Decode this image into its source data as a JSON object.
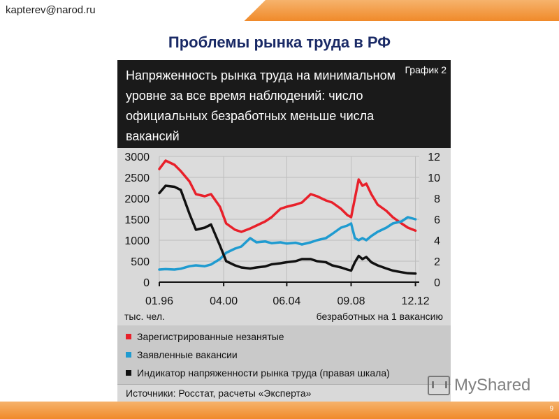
{
  "header": {
    "email": "kapterev@narod.ru",
    "title": "Проблемы рынка труда в РФ"
  },
  "chart_card": {
    "headline": "Напряженность рынка труда на минимальном уровне за все время наблюдений: число официальных безработных меньше числа вакансий",
    "badge": "График 2",
    "source": "Источники: Росстат, расчеты «Эксперта»"
  },
  "footer": {
    "page_number": "9",
    "watermark": "MyShared"
  },
  "chart_data": {
    "type": "line",
    "x_tick_labels": [
      "01.96",
      "04.00",
      "06.04",
      "09.08",
      "12.12"
    ],
    "x_range": [
      "1996-01",
      "2013-03"
    ],
    "left_axis": {
      "label": "тыс. чел.",
      "ticks": [
        0,
        500,
        1000,
        1500,
        2000,
        2500,
        3000
      ],
      "range": [
        0,
        3000
      ]
    },
    "right_axis": {
      "label": "безработных на 1 вакансию",
      "ticks": [
        0,
        2,
        4,
        6,
        8,
        10,
        12
      ],
      "range": [
        0,
        12
      ]
    },
    "grid": true,
    "colors": {
      "red": "#e8202a",
      "blue": "#1f9bd0",
      "black": "#111111"
    },
    "series": [
      {
        "name": "Зарегистрированные незанятые",
        "axis": "left",
        "color": "#e8202a",
        "points": [
          [
            "1996-01",
            2700
          ],
          [
            "1996-06",
            2900
          ],
          [
            "1997-01",
            2800
          ],
          [
            "1997-06",
            2650
          ],
          [
            "1998-01",
            2400
          ],
          [
            "1998-06",
            2100
          ],
          [
            "1999-01",
            2050
          ],
          [
            "1999-06",
            2100
          ],
          [
            "2000-01",
            1800
          ],
          [
            "2000-06",
            1400
          ],
          [
            "2001-01",
            1250
          ],
          [
            "2001-06",
            1200
          ],
          [
            "2002-01",
            1280
          ],
          [
            "2002-06",
            1350
          ],
          [
            "2003-01",
            1450
          ],
          [
            "2003-06",
            1550
          ],
          [
            "2004-01",
            1750
          ],
          [
            "2004-06",
            1800
          ],
          [
            "2005-01",
            1850
          ],
          [
            "2005-06",
            1900
          ],
          [
            "2006-01",
            2100
          ],
          [
            "2006-06",
            2050
          ],
          [
            "2007-01",
            1950
          ],
          [
            "2007-06",
            1900
          ],
          [
            "2008-01",
            1750
          ],
          [
            "2008-06",
            1600
          ],
          [
            "2008-09",
            1550
          ],
          [
            "2008-12",
            2000
          ],
          [
            "2009-03",
            2450
          ],
          [
            "2009-06",
            2300
          ],
          [
            "2009-09",
            2350
          ],
          [
            "2010-01",
            2100
          ],
          [
            "2010-06",
            1850
          ],
          [
            "2011-01",
            1700
          ],
          [
            "2011-06",
            1550
          ],
          [
            "2012-01",
            1400
          ],
          [
            "2012-06",
            1300
          ],
          [
            "2012-12",
            1230
          ]
        ]
      },
      {
        "name": "Заявленные вакансии",
        "axis": "left",
        "color": "#1f9bd0",
        "points": [
          [
            "1996-01",
            300
          ],
          [
            "1996-06",
            310
          ],
          [
            "1997-01",
            300
          ],
          [
            "1997-06",
            320
          ],
          [
            "1998-01",
            380
          ],
          [
            "1998-06",
            400
          ],
          [
            "1999-01",
            380
          ],
          [
            "1999-06",
            420
          ],
          [
            "2000-01",
            550
          ],
          [
            "2000-06",
            700
          ],
          [
            "2001-01",
            800
          ],
          [
            "2001-06",
            850
          ],
          [
            "2002-01",
            1050
          ],
          [
            "2002-06",
            950
          ],
          [
            "2003-01",
            970
          ],
          [
            "2003-06",
            930
          ],
          [
            "2004-01",
            950
          ],
          [
            "2004-06",
            920
          ],
          [
            "2005-01",
            940
          ],
          [
            "2005-06",
            900
          ],
          [
            "2006-01",
            950
          ],
          [
            "2006-06",
            1000
          ],
          [
            "2007-01",
            1050
          ],
          [
            "2007-06",
            1150
          ],
          [
            "2008-01",
            1300
          ],
          [
            "2008-06",
            1350
          ],
          [
            "2008-09",
            1400
          ],
          [
            "2008-12",
            1050
          ],
          [
            "2009-03",
            1000
          ],
          [
            "2009-06",
            1050
          ],
          [
            "2009-09",
            1000
          ],
          [
            "2010-01",
            1100
          ],
          [
            "2010-06",
            1200
          ],
          [
            "2011-01",
            1300
          ],
          [
            "2011-06",
            1400
          ],
          [
            "2012-01",
            1450
          ],
          [
            "2012-06",
            1550
          ],
          [
            "2012-12",
            1500
          ]
        ]
      },
      {
        "name": "Индикатор напряженности рынка труда (правая шкала)",
        "axis": "right",
        "color": "#111111",
        "points": [
          [
            "1996-01",
            8.5
          ],
          [
            "1996-06",
            9.2
          ],
          [
            "1997-01",
            9.1
          ],
          [
            "1997-06",
            8.8
          ],
          [
            "1998-01",
            6.5
          ],
          [
            "1998-06",
            5.0
          ],
          [
            "1999-01",
            5.2
          ],
          [
            "1999-06",
            5.5
          ],
          [
            "2000-01",
            3.5
          ],
          [
            "2000-06",
            2.0
          ],
          [
            "2001-01",
            1.6
          ],
          [
            "2001-06",
            1.4
          ],
          [
            "2002-01",
            1.3
          ],
          [
            "2002-06",
            1.4
          ],
          [
            "2003-01",
            1.5
          ],
          [
            "2003-06",
            1.7
          ],
          [
            "2004-01",
            1.8
          ],
          [
            "2004-06",
            1.9
          ],
          [
            "2005-01",
            2.0
          ],
          [
            "2005-06",
            2.2
          ],
          [
            "2006-01",
            2.2
          ],
          [
            "2006-06",
            2.0
          ],
          [
            "2007-01",
            1.9
          ],
          [
            "2007-06",
            1.6
          ],
          [
            "2008-01",
            1.4
          ],
          [
            "2008-06",
            1.2
          ],
          [
            "2008-09",
            1.1
          ],
          [
            "2008-12",
            1.9
          ],
          [
            "2009-03",
            2.5
          ],
          [
            "2009-06",
            2.2
          ],
          [
            "2009-09",
            2.4
          ],
          [
            "2010-01",
            1.9
          ],
          [
            "2010-06",
            1.6
          ],
          [
            "2011-01",
            1.3
          ],
          [
            "2011-06",
            1.1
          ],
          [
            "2012-01",
            0.95
          ],
          [
            "2012-06",
            0.85
          ],
          [
            "2012-12",
            0.82
          ]
        ]
      }
    ]
  }
}
